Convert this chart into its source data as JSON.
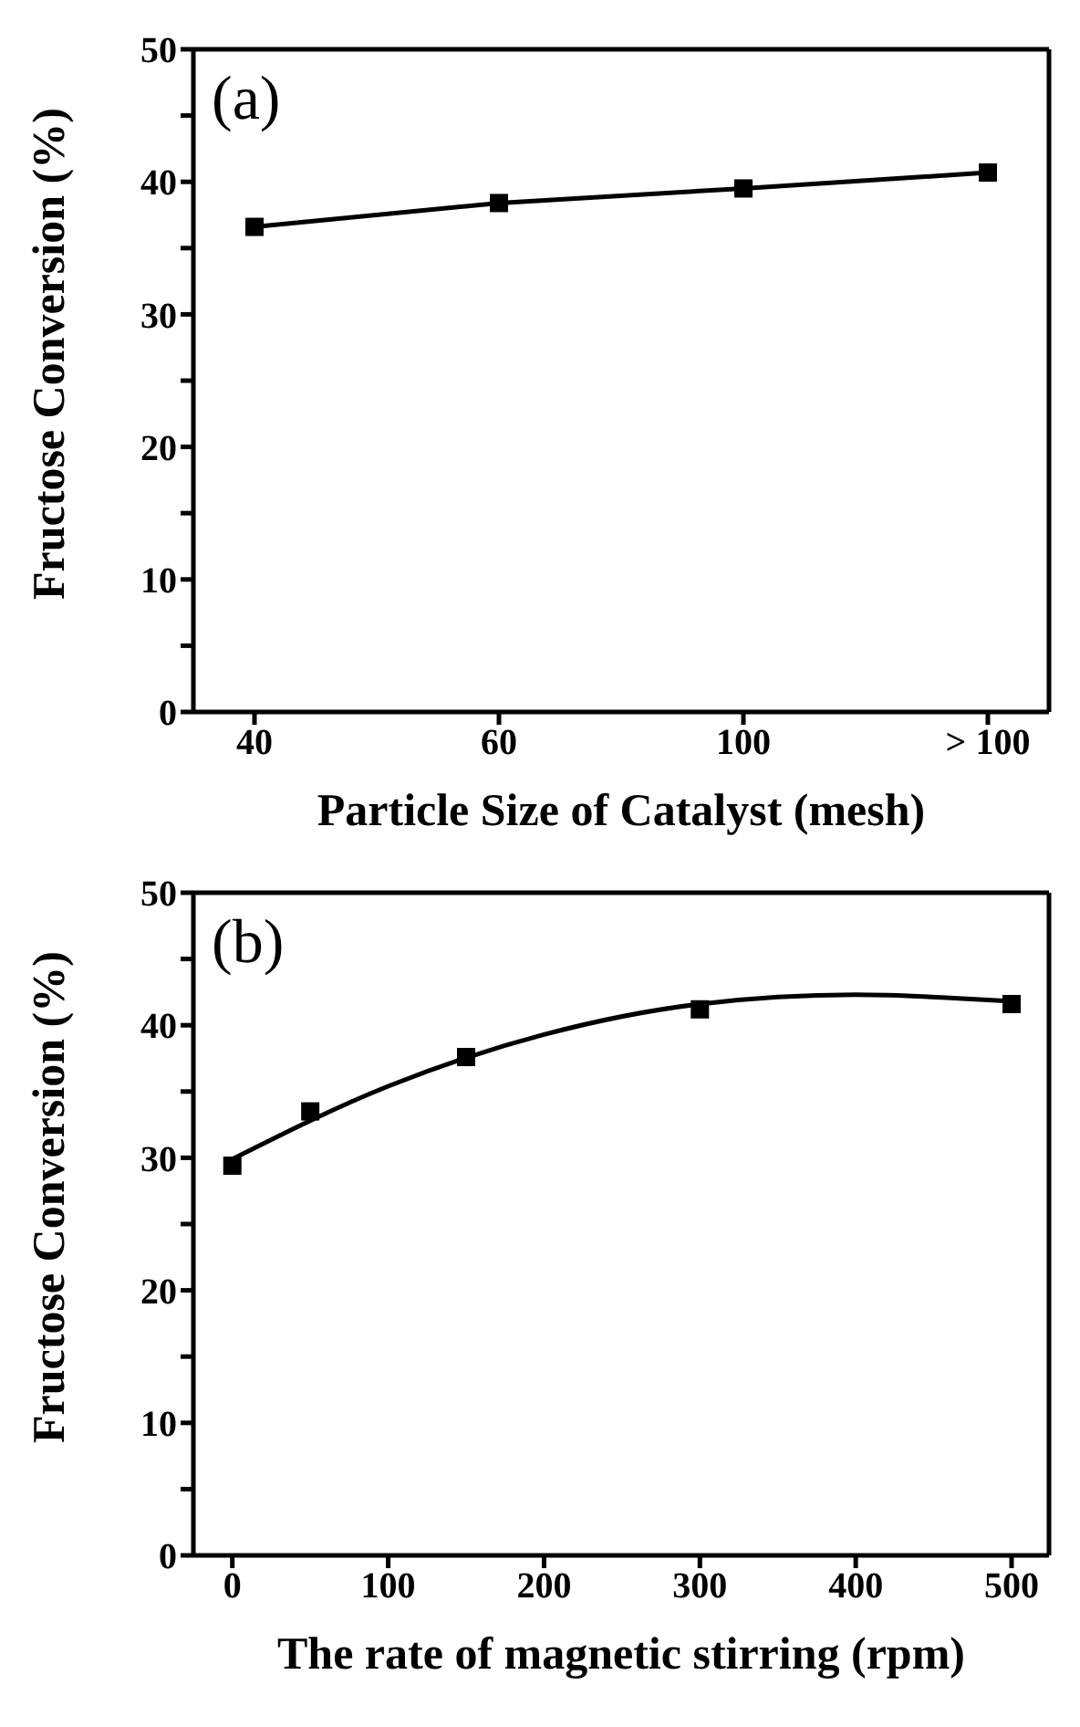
{
  "chart_data": [
    {
      "type": "line",
      "xlabel": "Particle Size of Catalyst (mesh)",
      "ylabel": "Fructose Conversion (%)",
      "annotations": [
        "(a)"
      ],
      "categories": [
        "40",
        "60",
        "100",
        "> 100"
      ],
      "series": [
        {
          "color": "#000000",
          "values": [
            36.6,
            38.4,
            39.5,
            40.7
          ]
        }
      ],
      "ylim": [
        0,
        50
      ],
      "yticks": [
        0,
        {
          "value": 5,
          "label": null
        },
        10,
        {
          "value": 15,
          "label": null
        },
        20,
        {
          "value": 25,
          "label": null
        },
        30,
        {
          "value": 35,
          "label": null
        },
        40,
        {
          "value": 45,
          "label": null
        },
        50
      ],
      "marker": "square",
      "line_style": "solid"
    },
    {
      "type": "scatter",
      "xlabel": "The rate of magnetic stirring (rpm)",
      "ylabel": "Fructose Conversion (%)",
      "annotations": [
        "(b)"
      ],
      "x": [
        0,
        50,
        150,
        300,
        500
      ],
      "series": [
        {
          "color": "#000000",
          "values": [
            29.4,
            33.5,
            37.6,
            41.2,
            41.6
          ]
        },
        {
          "type": "line",
          "color": "#000000",
          "x": [
            0,
            100,
            200,
            300,
            400,
            500
          ],
          "values": [
            29.9,
            35.4,
            39.3,
            41.6,
            42.3,
            41.8
          ],
          "marker": "none"
        }
      ],
      "xlim": [
        -25,
        524
      ],
      "xticks": [
        0,
        100,
        200,
        300,
        400,
        500
      ],
      "ylim": [
        0,
        50
      ],
      "yticks": [
        0,
        {
          "value": 5,
          "label": null
        },
        10,
        {
          "value": 15,
          "label": null
        },
        20,
        {
          "value": 25,
          "label": null
        },
        30,
        {
          "value": 35,
          "label": null
        },
        40,
        {
          "value": 45,
          "label": null
        },
        50
      ],
      "marker": "square",
      "line_style": "solid"
    }
  ]
}
